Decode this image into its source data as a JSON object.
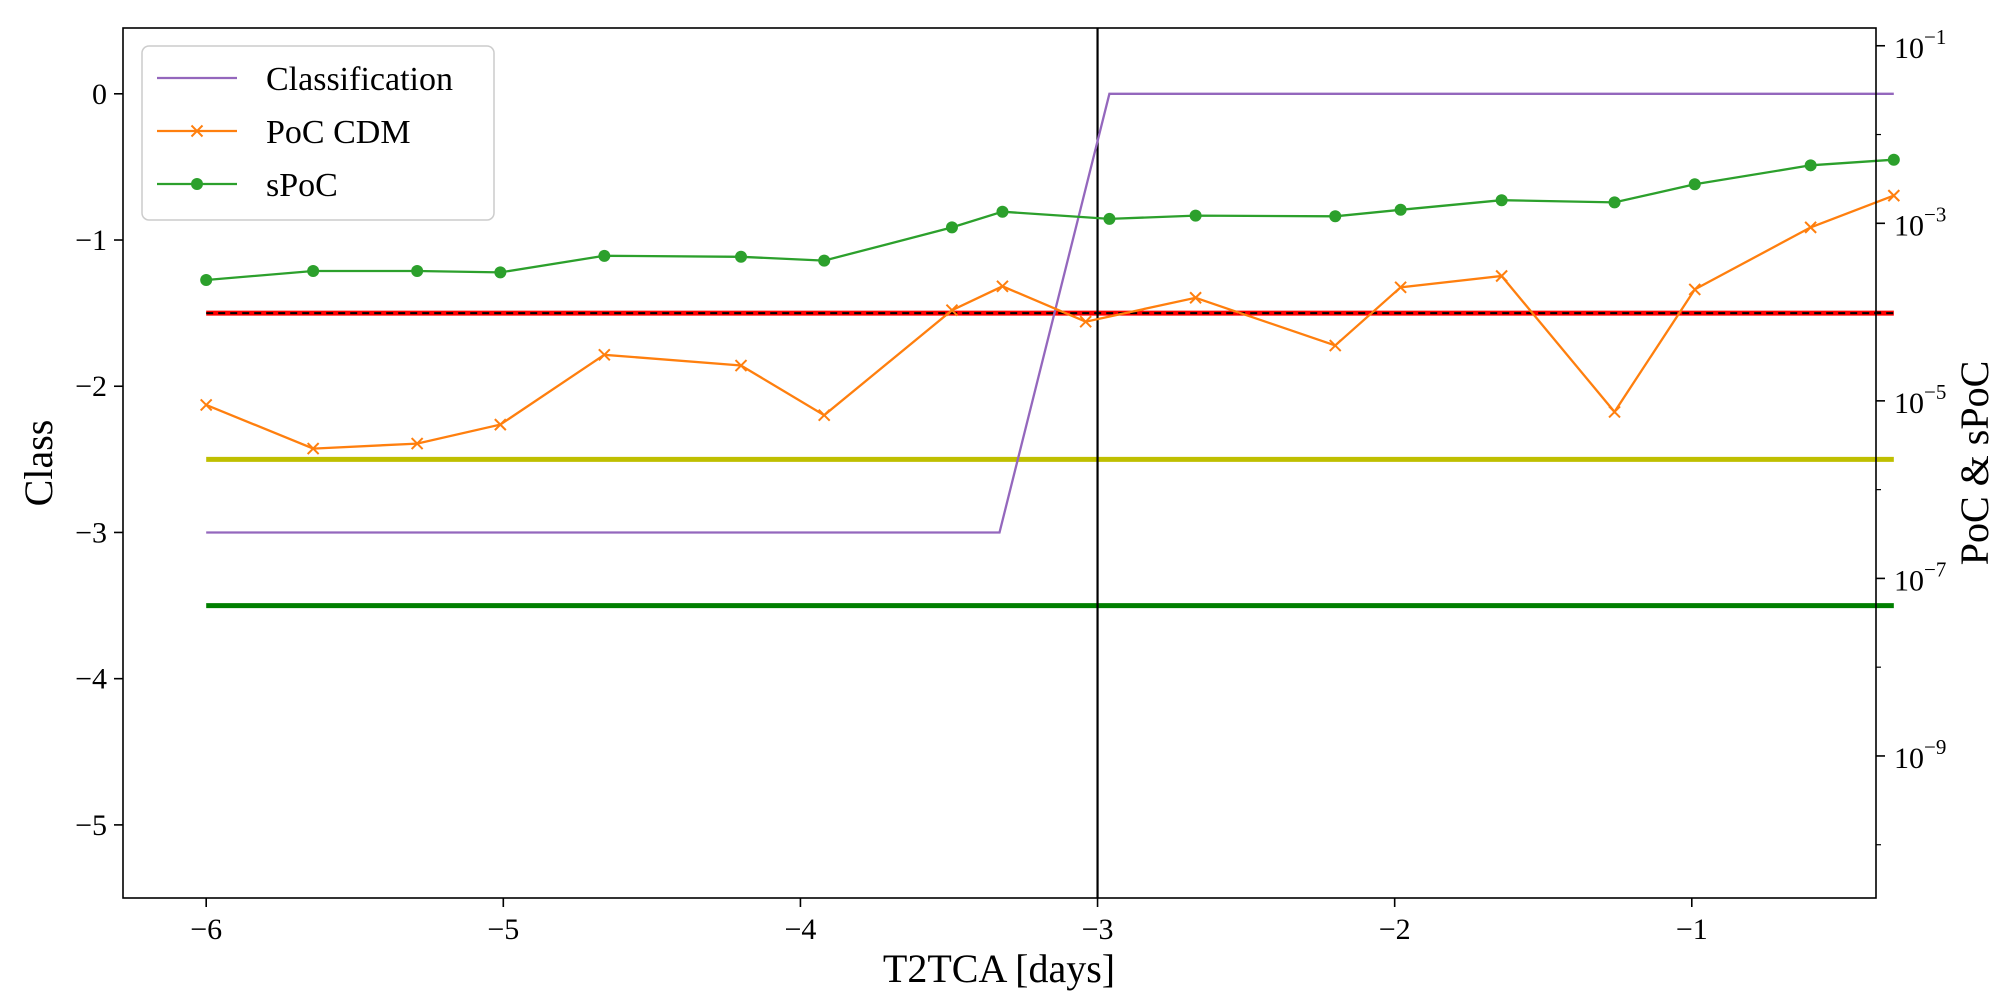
{
  "chart_data": {
    "type": "line",
    "xlabel": "T2TCA [days]",
    "ylabel_left": "Class",
    "ylabel_right": "PoC & sPoC",
    "xlim": [
      -6.28,
      -0.38
    ],
    "ylim_left": [
      -5.5,
      0.45
    ],
    "ylim_right_log10": [
      -10.6,
      -0.8
    ],
    "yscale_right": "log",
    "grid": false,
    "legend_position": "top-left",
    "x_ticks": [
      {
        "value": -6,
        "label": "−6"
      },
      {
        "value": -5,
        "label": "−5"
      },
      {
        "value": -4,
        "label": "−4"
      },
      {
        "value": -3,
        "label": "−3"
      },
      {
        "value": -2,
        "label": "−2"
      },
      {
        "value": -1,
        "label": "−1"
      }
    ],
    "y_left_ticks": [
      {
        "value": 0,
        "label": "0"
      },
      {
        "value": -1,
        "label": "−1"
      },
      {
        "value": -2,
        "label": "−2"
      },
      {
        "value": -3,
        "label": "−3"
      },
      {
        "value": -4,
        "label": "−4"
      },
      {
        "value": -5,
        "label": "−5"
      }
    ],
    "y_right_ticks": [
      {
        "exponent": -1,
        "base": "10",
        "sup": "−1"
      },
      {
        "exponent": -3,
        "base": "10",
        "sup": "−3"
      },
      {
        "exponent": -5,
        "base": "10",
        "sup": "−5"
      },
      {
        "exponent": -7,
        "base": "10",
        "sup": "−7"
      },
      {
        "exponent": -9,
        "base": "10",
        "sup": "−9"
      }
    ],
    "series": [
      {
        "name": "Classification",
        "axis": "left",
        "color": "#9467bd",
        "marker": "none",
        "x": [
          -6.0,
          -3.33,
          -2.96,
          -0.32
        ],
        "y": [
          -3,
          -3,
          0,
          0
        ]
      },
      {
        "name": "PoC CDM",
        "axis": "right",
        "color": "#ff7f0e",
        "marker": "x",
        "x": [
          -6.0,
          -5.64,
          -5.29,
          -5.01,
          -4.66,
          -4.2,
          -3.92,
          -3.49,
          -3.32,
          -3.04,
          -2.67,
          -2.2,
          -1.98,
          -1.64,
          -1.26,
          -0.99,
          -0.6,
          -0.32
        ],
        "y": [
          9e-06,
          2.9e-06,
          3.3e-06,
          5.4e-06,
          3.3e-05,
          2.5e-05,
          6.9e-06,
          0.000105,
          0.000195,
          7.8e-05,
          0.000145,
          4.2e-05,
          0.00019,
          0.000255,
          7.5e-06,
          0.00018,
          0.0009,
          0.00205
        ]
      },
      {
        "name": "sPoC",
        "axis": "right",
        "color": "#2ca02c",
        "marker": "circle",
        "x": [
          -6.0,
          -5.64,
          -5.29,
          -5.01,
          -4.66,
          -4.2,
          -3.92,
          -3.49,
          -3.32,
          -2.96,
          -2.67,
          -2.2,
          -1.98,
          -1.64,
          -1.26,
          -0.99,
          -0.6,
          -0.32
        ],
        "y": [
          0.00023,
          0.00029,
          0.00029,
          0.00028,
          0.00043,
          0.00042,
          0.00038,
          0.0009,
          0.00135,
          0.00112,
          0.00122,
          0.0012,
          0.00142,
          0.00182,
          0.00172,
          0.00275,
          0.0045,
          0.0052
        ]
      }
    ],
    "reference_lines": [
      {
        "axis": "left",
        "y": -1.5,
        "color": "#ff0000",
        "style": "solid-with-dashed-black",
        "x": [
          -6.0,
          -0.32
        ]
      },
      {
        "axis": "left",
        "y": -2.5,
        "color": "#bfbf00",
        "style": "solid",
        "x": [
          -6.0,
          -0.32
        ]
      },
      {
        "axis": "left",
        "y": -3.5,
        "color": "#007f00",
        "style": "solid",
        "x": [
          -6.0,
          -0.32
        ]
      }
    ],
    "vertical_lines": [
      {
        "x": -3.0,
        "color": "#000000"
      }
    ]
  }
}
